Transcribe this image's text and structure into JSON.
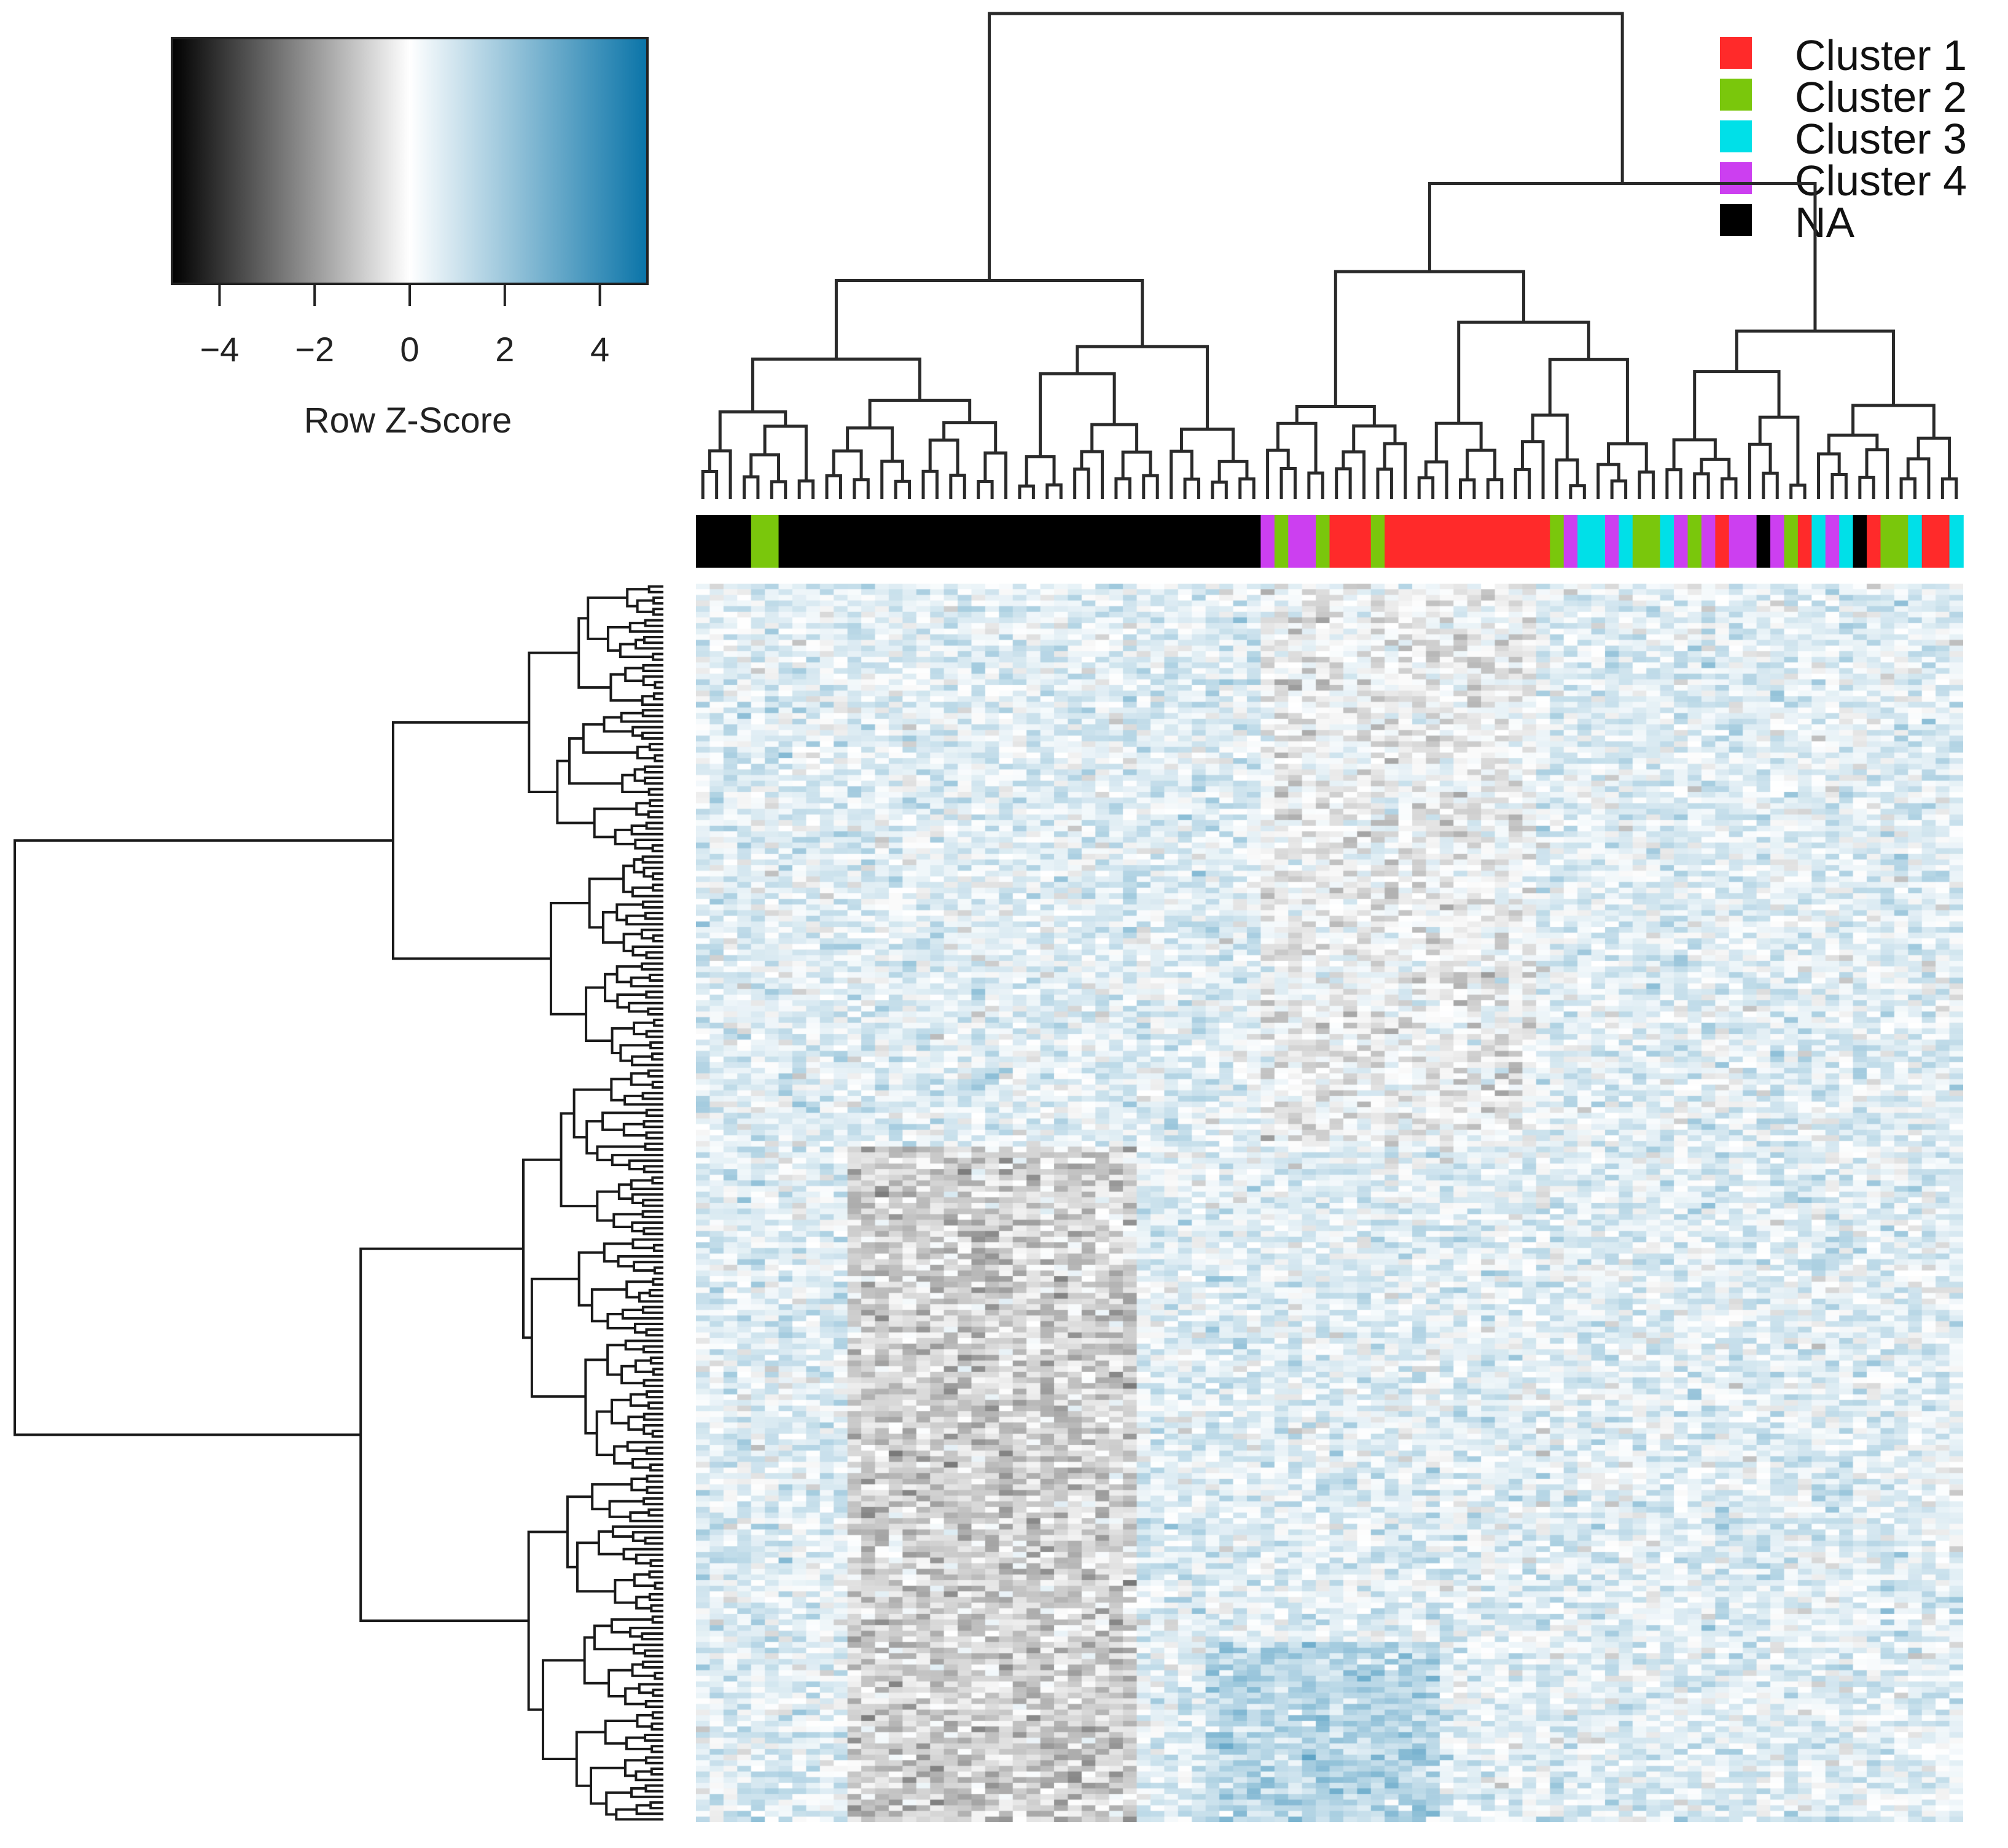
{
  "chart_data": {
    "type": "heatmap",
    "color_key": {
      "title": "Row Z-Score",
      "range": [
        -5,
        5
      ],
      "ticks": [
        -4,
        -2,
        0,
        2,
        4
      ],
      "tick_labels": [
        "−4",
        "−2",
        "0",
        "2",
        "4"
      ],
      "low_color": "#000000",
      "mid_color": "#ffffff",
      "high_color": "#0a74a8"
    },
    "legend": {
      "placement": "top-right",
      "entries": [
        {
          "label": "Cluster 1",
          "color": "#ff2a2a"
        },
        {
          "label": "Cluster 2",
          "color": "#7ac70c"
        },
        {
          "label": "Cluster 3",
          "color": "#00e0e8"
        },
        {
          "label": "Cluster 4",
          "color": "#cc3ff0"
        },
        {
          "label": "NA",
          "color": "#000000"
        }
      ]
    },
    "column_annotation": {
      "description_of_order": "left to right, 92 samples",
      "sequence": [
        "NA",
        "NA",
        "NA",
        "NA",
        "Cluster 2",
        "Cluster 2",
        "NA",
        "NA",
        "NA",
        "NA",
        "NA",
        "NA",
        "NA",
        "NA",
        "NA",
        "NA",
        "NA",
        "NA",
        "NA",
        "NA",
        "NA",
        "NA",
        "NA",
        "NA",
        "NA",
        "NA",
        "NA",
        "NA",
        "NA",
        "NA",
        "NA",
        "NA",
        "NA",
        "NA",
        "NA",
        "NA",
        "NA",
        "NA",
        "NA",
        "NA",
        "NA",
        "Cluster 4",
        "Cluster 2",
        "Cluster 4",
        "Cluster 4",
        "Cluster 2",
        "Cluster 1",
        "Cluster 1",
        "Cluster 1",
        "Cluster 2",
        "Cluster 1",
        "Cluster 1",
        "Cluster 1",
        "Cluster 1",
        "Cluster 1",
        "Cluster 1",
        "Cluster 1",
        "Cluster 1",
        "Cluster 1",
        "Cluster 1",
        "Cluster 1",
        "Cluster 1",
        "Cluster 2",
        "Cluster 4",
        "Cluster 3",
        "Cluster 3",
        "Cluster 4",
        "Cluster 3",
        "Cluster 2",
        "Cluster 2",
        "Cluster 3",
        "Cluster 4",
        "Cluster 2",
        "Cluster 4",
        "Cluster 1",
        "Cluster 4",
        "Cluster 4",
        "NA",
        "Cluster 4",
        "Cluster 2",
        "Cluster 1",
        "Cluster 3",
        "Cluster 4",
        "Cluster 3",
        "NA",
        "Cluster 1",
        "Cluster 2",
        "Cluster 2",
        "Cluster 3",
        "Cluster 1",
        "Cluster 1",
        "Cluster 3"
      ]
    },
    "dims": {
      "rows": 220,
      "cols": 92
    },
    "column_pattern_note": "Columns 11-31 darker (negative z) in the lower half of rows; columns 37-53 lighter blue (positive z) in the bottom rows"
  }
}
